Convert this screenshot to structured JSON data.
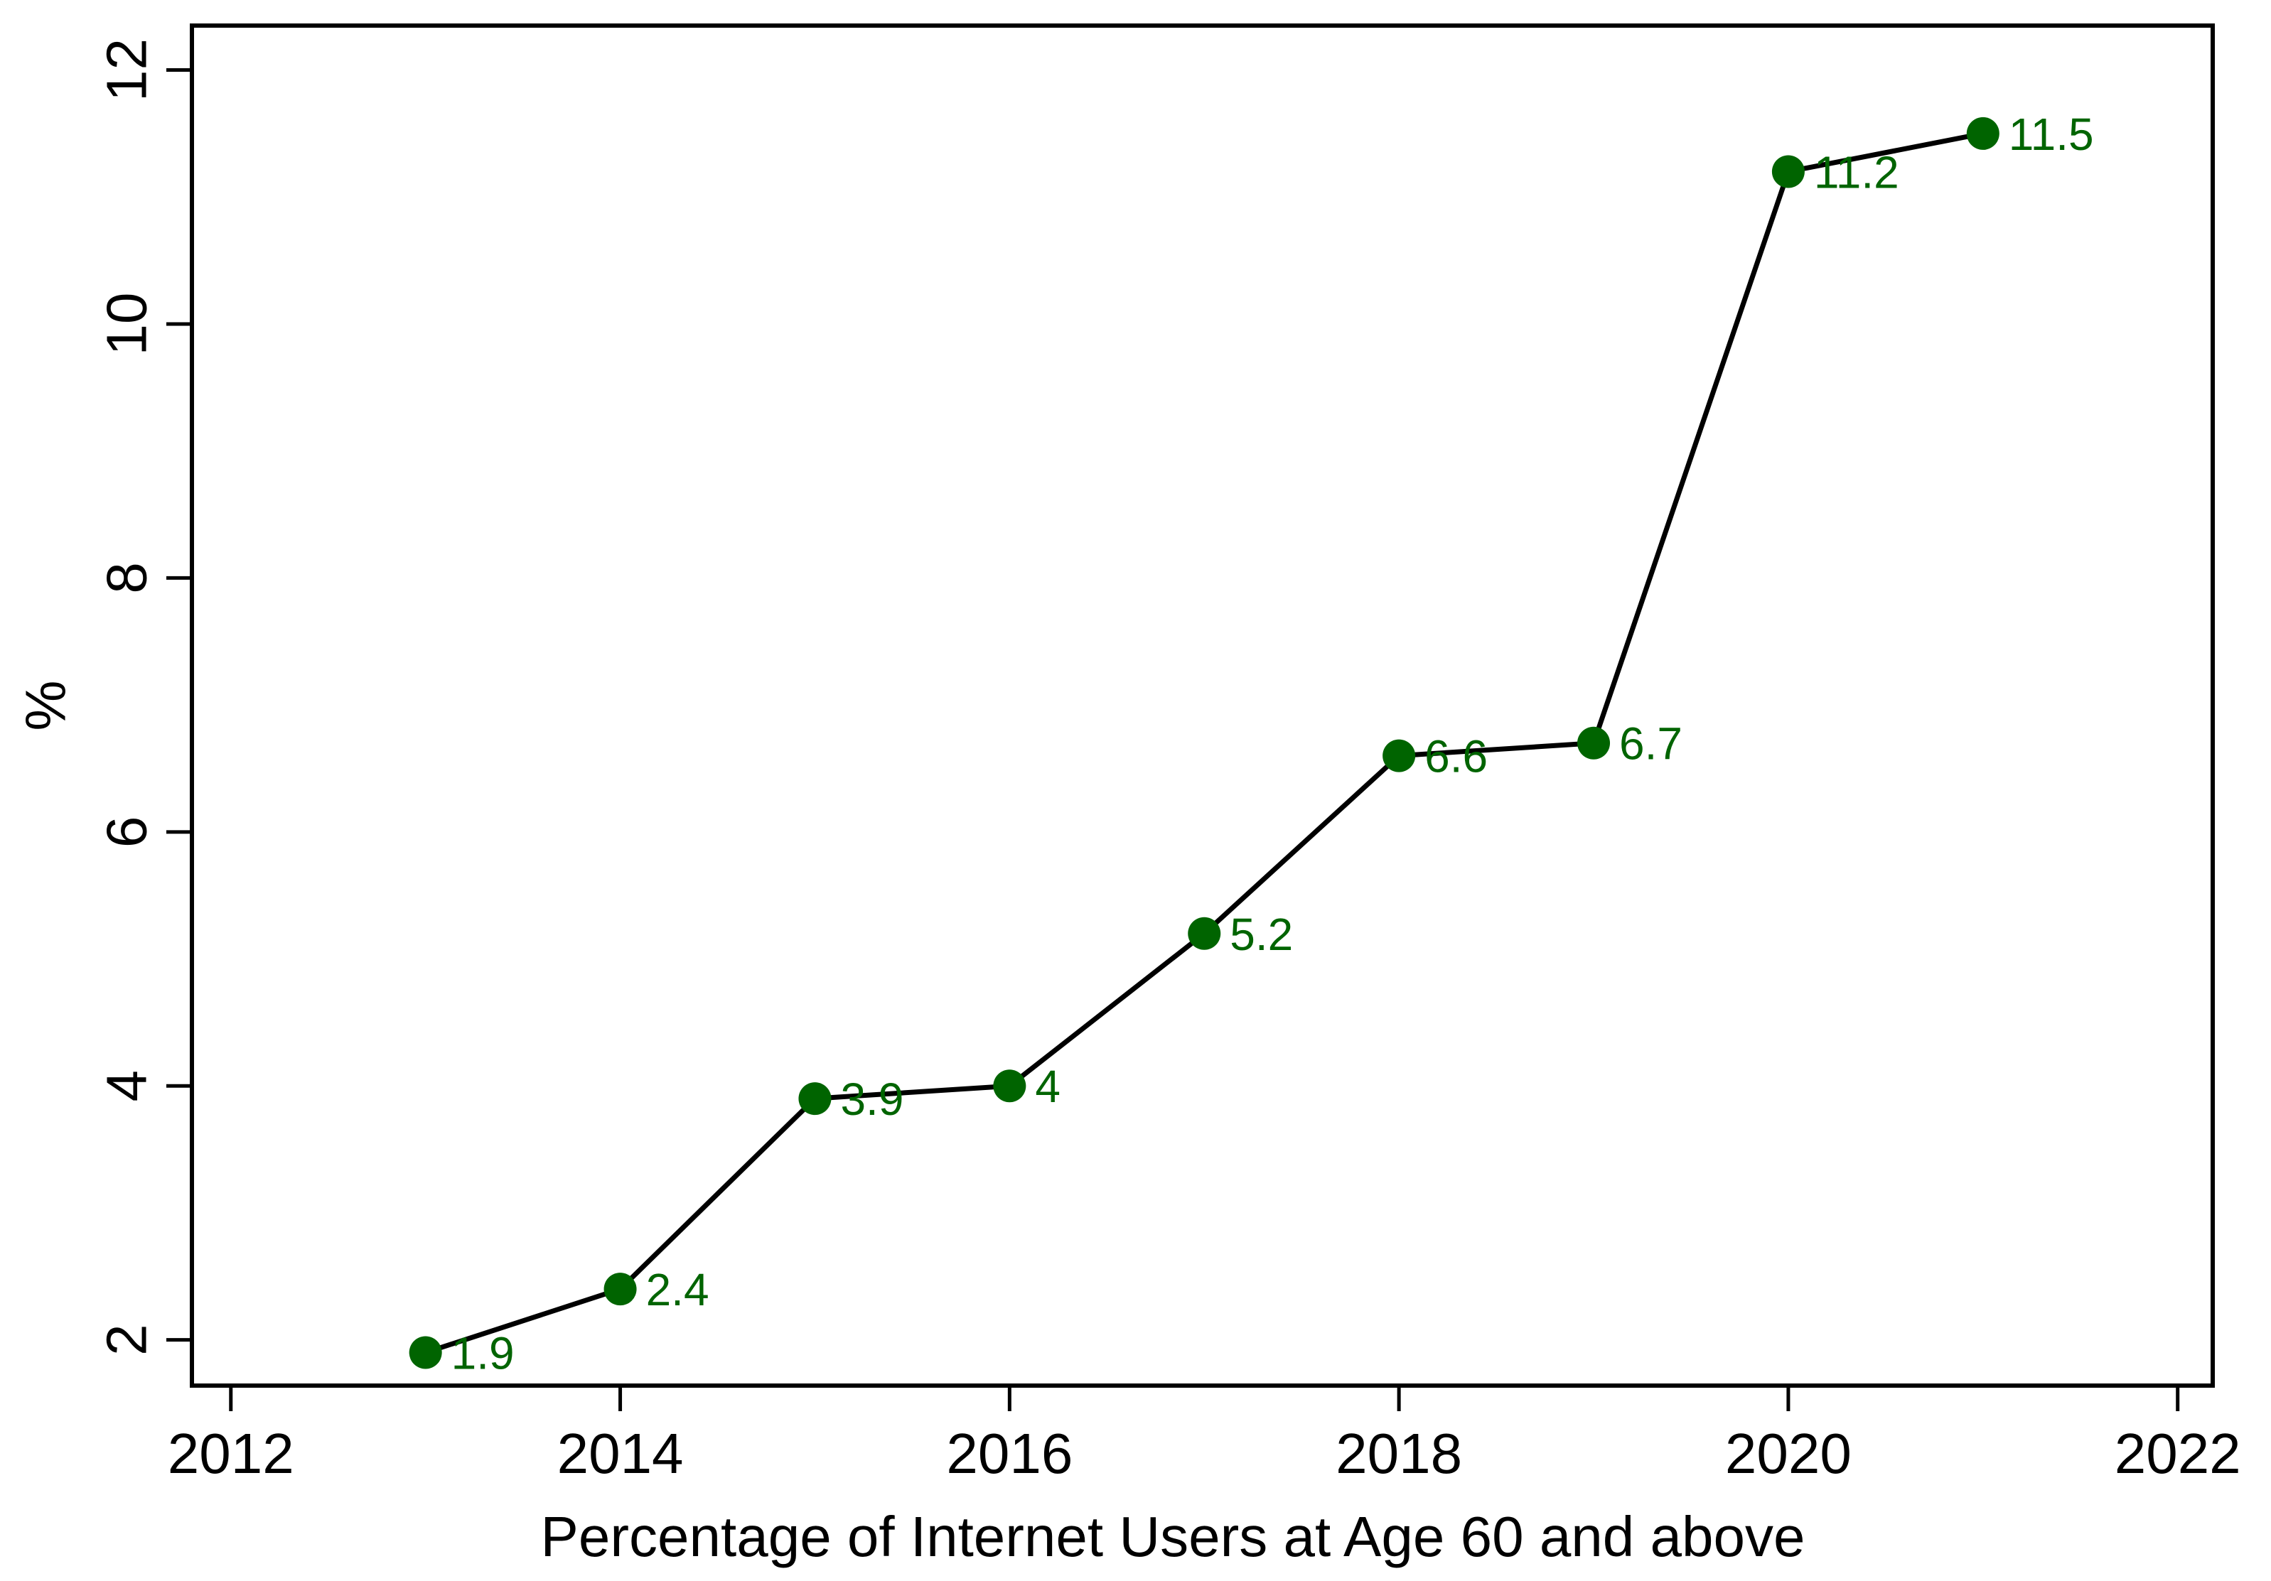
{
  "chart_data": {
    "type": "line",
    "x": [
      2013,
      2014,
      2015,
      2016,
      2017,
      2018,
      2019,
      2020,
      2021
    ],
    "values": [
      1.9,
      2.4,
      3.9,
      4,
      5.2,
      6.6,
      6.7,
      11.2,
      11.5
    ],
    "point_labels": [
      "1.9",
      "2.4",
      "3.9",
      "4",
      "5.2",
      "6.6",
      "6.7",
      "11.2",
      "11.5"
    ],
    "title": "",
    "xlabel": "Percentage of Internet Users at Age 60 and above",
    "ylabel": "%",
    "x_ticks": [
      2012,
      2014,
      2016,
      2018,
      2020,
      2022
    ],
    "x_tick_labels": [
      "2012",
      "2014",
      "2016",
      "2018",
      "2020",
      "2022"
    ],
    "y_ticks": [
      2,
      4,
      6,
      8,
      10,
      12
    ],
    "y_tick_labels": [
      "2",
      "4",
      "6",
      "8",
      "10",
      "12"
    ],
    "xlim": [
      2011.8,
      2022.18
    ],
    "ylim": [
      1.64,
      12.35
    ],
    "grid": false,
    "legend": "none",
    "marker_shape": "circle",
    "colors": {
      "line": "#000000",
      "marker": "#006400",
      "point_label": "#006400",
      "axis": "#000000",
      "background": "#ffffff"
    }
  }
}
